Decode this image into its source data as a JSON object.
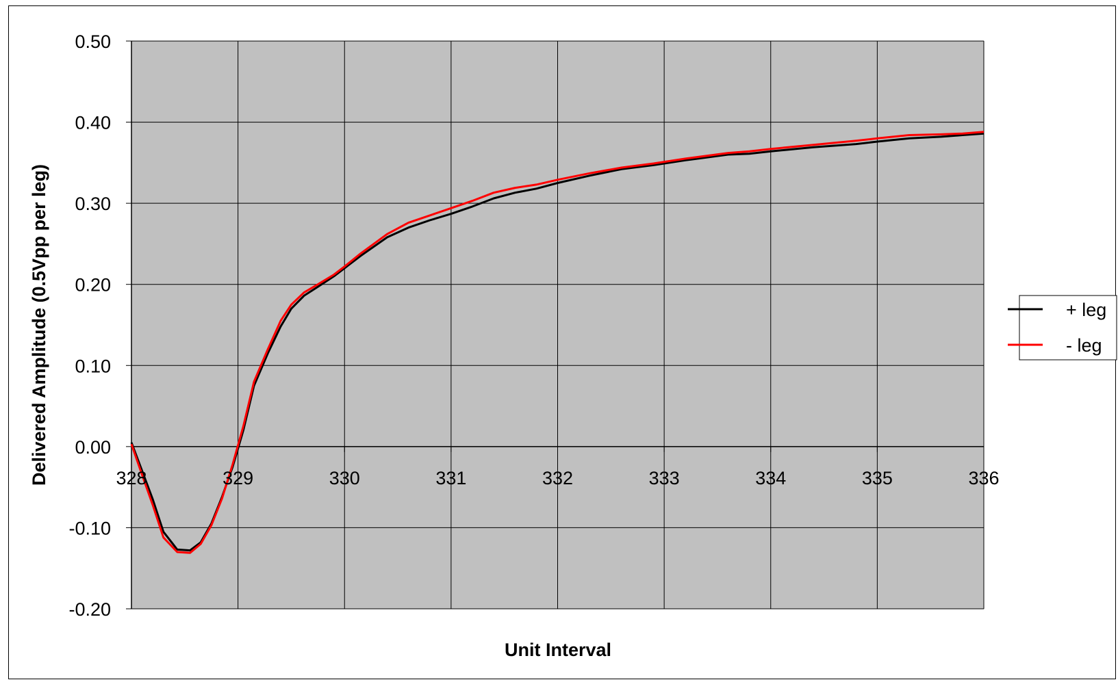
{
  "chart_data": {
    "type": "line",
    "title": "",
    "xlabel": "Unit Interval",
    "ylabel": "Delivered Amplitude (0.5Vpp per leg)",
    "xlim": [
      328,
      336
    ],
    "ylim": [
      -0.2,
      0.5
    ],
    "x_ticks": [
      "328",
      "329",
      "330",
      "331",
      "332",
      "333",
      "334",
      "335",
      "336"
    ],
    "y_ticks": [
      "0.50",
      "0.40",
      "0.30",
      "0.20",
      "0.10",
      "0.00",
      "-0.10",
      "-0.20"
    ],
    "grid": true,
    "plot_background": "#C0C0C0",
    "legend_position": "right",
    "series": [
      {
        "name": "+ leg",
        "color": "#000000",
        "points": [
          [
            328.0,
            0.005
          ],
          [
            328.1,
            -0.03
          ],
          [
            328.2,
            -0.065
          ],
          [
            328.3,
            -0.105
          ],
          [
            328.43,
            -0.127
          ],
          [
            328.55,
            -0.128
          ],
          [
            328.65,
            -0.118
          ],
          [
            328.75,
            -0.095
          ],
          [
            328.85,
            -0.062
          ],
          [
            328.95,
            -0.025
          ],
          [
            329.05,
            0.02
          ],
          [
            329.15,
            0.075
          ],
          [
            329.28,
            0.115
          ],
          [
            329.4,
            0.148
          ],
          [
            329.5,
            0.17
          ],
          [
            329.62,
            0.186
          ],
          [
            329.75,
            0.197
          ],
          [
            329.9,
            0.21
          ],
          [
            330.0,
            0.22
          ],
          [
            330.15,
            0.235
          ],
          [
            330.4,
            0.258
          ],
          [
            330.6,
            0.27
          ],
          [
            330.8,
            0.279
          ],
          [
            331.0,
            0.287
          ],
          [
            331.2,
            0.296
          ],
          [
            331.4,
            0.306
          ],
          [
            331.6,
            0.313
          ],
          [
            331.8,
            0.318
          ],
          [
            332.0,
            0.325
          ],
          [
            332.3,
            0.334
          ],
          [
            332.6,
            0.342
          ],
          [
            332.9,
            0.347
          ],
          [
            333.2,
            0.353
          ],
          [
            333.6,
            0.36
          ],
          [
            333.8,
            0.361
          ],
          [
            334.0,
            0.364
          ],
          [
            334.4,
            0.369
          ],
          [
            334.8,
            0.373
          ],
          [
            335.0,
            0.376
          ],
          [
            335.3,
            0.38
          ],
          [
            335.6,
            0.382
          ],
          [
            335.8,
            0.384
          ],
          [
            336.0,
            0.386
          ]
        ]
      },
      {
        "name": "- leg",
        "color": "#FF0000",
        "points": [
          [
            328.0,
            0.003
          ],
          [
            328.1,
            -0.035
          ],
          [
            328.2,
            -0.072
          ],
          [
            328.3,
            -0.112
          ],
          [
            328.43,
            -0.13
          ],
          [
            328.55,
            -0.131
          ],
          [
            328.65,
            -0.12
          ],
          [
            328.75,
            -0.097
          ],
          [
            328.85,
            -0.064
          ],
          [
            328.95,
            -0.022
          ],
          [
            329.05,
            0.025
          ],
          [
            329.15,
            0.08
          ],
          [
            329.28,
            0.12
          ],
          [
            329.4,
            0.155
          ],
          [
            329.5,
            0.175
          ],
          [
            329.62,
            0.19
          ],
          [
            329.75,
            0.2
          ],
          [
            329.9,
            0.212
          ],
          [
            330.0,
            0.222
          ],
          [
            330.15,
            0.238
          ],
          [
            330.4,
            0.262
          ],
          [
            330.6,
            0.276
          ],
          [
            330.8,
            0.285
          ],
          [
            331.0,
            0.294
          ],
          [
            331.2,
            0.303
          ],
          [
            331.4,
            0.313
          ],
          [
            331.6,
            0.319
          ],
          [
            331.8,
            0.323
          ],
          [
            332.0,
            0.329
          ],
          [
            332.3,
            0.337
          ],
          [
            332.6,
            0.344
          ],
          [
            332.9,
            0.349
          ],
          [
            333.2,
            0.355
          ],
          [
            333.6,
            0.362
          ],
          [
            333.8,
            0.364
          ],
          [
            334.0,
            0.367
          ],
          [
            334.4,
            0.372
          ],
          [
            334.8,
            0.377
          ],
          [
            335.0,
            0.38
          ],
          [
            335.3,
            0.384
          ],
          [
            335.6,
            0.385
          ],
          [
            335.8,
            0.386
          ],
          [
            336.0,
            0.388
          ]
        ]
      }
    ]
  }
}
